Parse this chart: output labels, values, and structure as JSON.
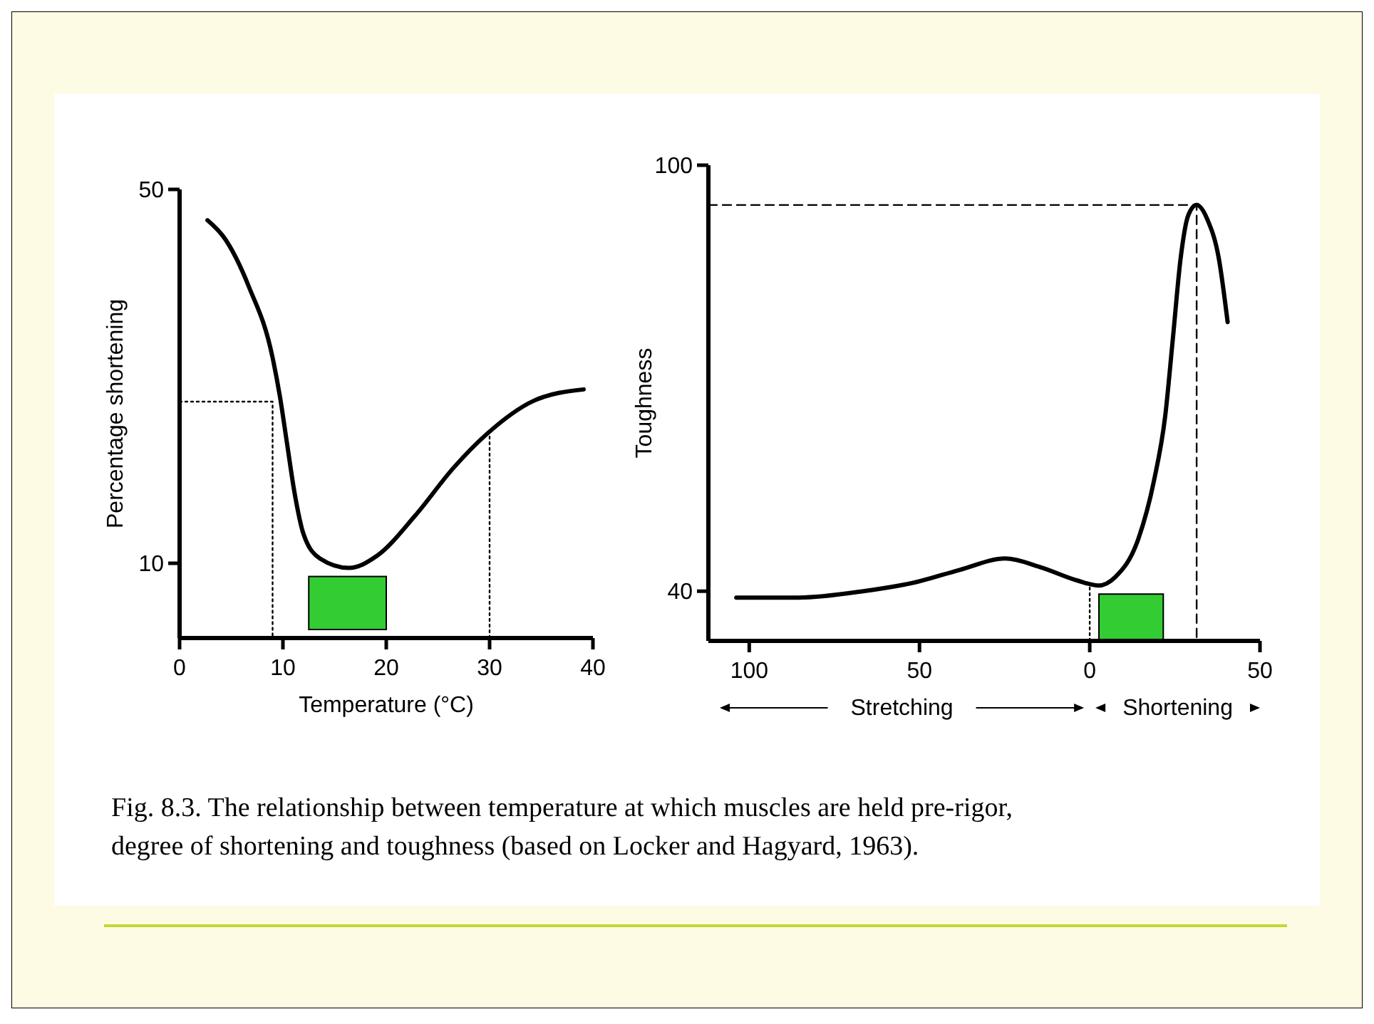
{
  "chart_data": [
    {
      "type": "line",
      "xlabel": "Temperature (°C)",
      "ylabel": "Percentage shortening",
      "xlim": [
        0,
        40
      ],
      "xticks": [
        0,
        10,
        20,
        30,
        40
      ],
      "ylim": [
        2,
        50
      ],
      "yticks": [
        10,
        50
      ],
      "grid": false,
      "series": [
        {
          "color": "#000000",
          "line_style": "solid",
          "x": [
            2.7,
            4.4,
            6.7,
            9.0,
            9.7,
            10.4,
            11.1,
            12.0,
            13.6,
            16.4,
            19.1,
            22.8,
            26.5,
            29.7,
            34.3,
            39.1
          ],
          "values": [
            46.7,
            44.7,
            39.6,
            32.0,
            27.9,
            22.8,
            17.7,
            13.1,
            10.5,
            9.5,
            10.8,
            15.1,
            20.2,
            23.8,
            27.4,
            28.6
          ]
        },
        {
          "color": "#000000",
          "line_style": "dotted",
          "x": [
            0,
            9,
            9
          ],
          "values": [
            27.3,
            27.3,
            2
          ]
        },
        {
          "color": "#000000",
          "line_style": "dotted",
          "x": [
            30,
            30
          ],
          "values": [
            2,
            23.9
          ]
        }
      ],
      "bands": [
        {
          "axis": "x",
          "from": 12.5,
          "to": 20,
          "color": "#33cc33"
        }
      ],
      "annotations": [
        "Fig. 8.3. The relationship between temperature at which muscles are held pre-rigor, degree of shortening and toughness (based on Locker and Hagyard, 1963)."
      ]
    },
    {
      "type": "line",
      "ylabel": "Toughness",
      "xlim": [
        -112,
        50
      ],
      "xticks": [
        {
          "value": -100,
          "label": "100"
        },
        {
          "value": -50,
          "label": "50"
        },
        0,
        50
      ],
      "ylim": [
        33,
        100
      ],
      "yticks": [
        40,
        100
      ],
      "grid": false,
      "series": [
        {
          "color": "#000000",
          "line_style": "solid",
          "x": [
            -103.8,
            -85.4,
            -66.5,
            -50.8,
            -38.2,
            -24.8,
            -14.6,
            -3.6,
            2.5,
            7.5,
            14.3,
            18.8,
            22.2,
            24.4,
            26.7,
            28.9,
            31.4,
            34.6,
            37.9,
            40.5
          ],
          "values": [
            39.1,
            39.1,
            40,
            41.3,
            43.0,
            44.6,
            43.4,
            41.5,
            40.8,
            42.0,
            47.4,
            55.4,
            64.8,
            75.5,
            86.9,
            92.9,
            94.4,
            92.3,
            86.9,
            77.9
          ]
        },
        {
          "color": "#000000",
          "line_style": "dashed",
          "x": [
            -112,
            31.4,
            31.4
          ],
          "values": [
            94.4,
            94.4,
            33
          ]
        },
        {
          "color": "#000000",
          "line_style": "dotted",
          "x": [
            0,
            0
          ],
          "values": [
            33,
            41
          ]
        }
      ],
      "bands": [
        {
          "axis": "x",
          "from": 2.7,
          "to": 21.6,
          "color": "#33cc33"
        }
      ],
      "annotations": [
        "Stretching",
        "Shortening"
      ]
    }
  ]
}
